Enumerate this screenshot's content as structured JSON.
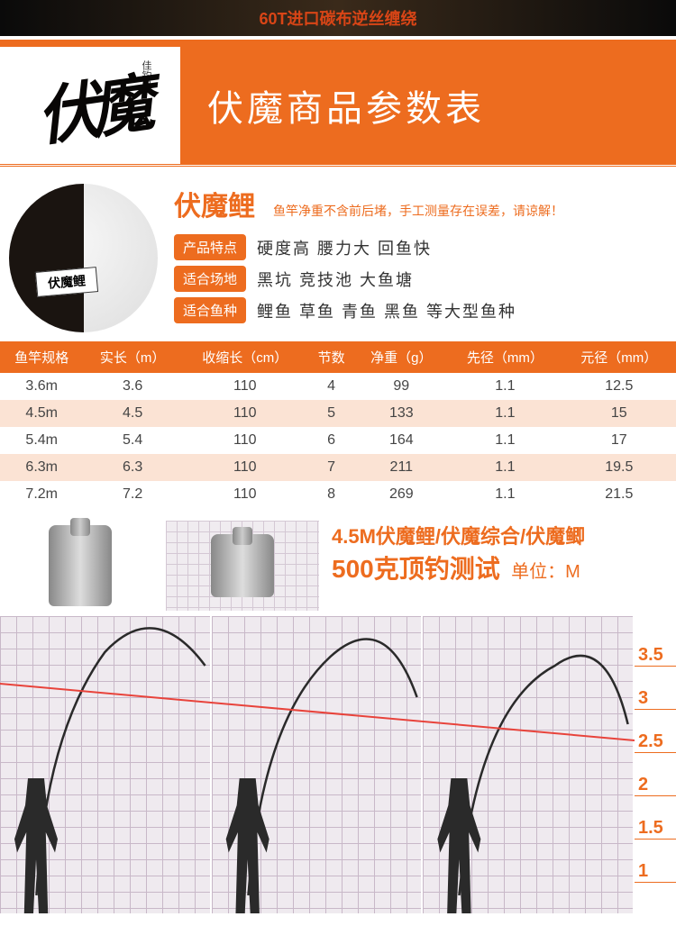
{
  "top_banner": "60T进口碳布逆丝缠绕",
  "header": {
    "logo_main": "伏魔",
    "logo_sub": "佳钓尼",
    "title": "伏魔商品参数表"
  },
  "product": {
    "rod_label": "伏魔鲤",
    "name": "伏魔鲤",
    "note": "鱼竿净重不含前后堵，手工测量存在误差，请谅解！",
    "attrs": [
      {
        "label": "产品特点",
        "value": "硬度高 腰力大 回鱼快"
      },
      {
        "label": "适合场地",
        "value": "黑坑 竞技池 大鱼塘"
      },
      {
        "label": "适合鱼种",
        "value": "鲤鱼 草鱼 青鱼 黑鱼 等大型鱼种"
      }
    ]
  },
  "spec_table": {
    "headers": [
      "鱼竿规格",
      "实长（m）",
      "收缩长（cm）",
      "节数",
      "净重（g）",
      "先径（mm）",
      "元径（mm）"
    ],
    "rows": [
      [
        "3.6m",
        "3.6",
        "110",
        "4",
        "99",
        "1.1",
        "12.5"
      ],
      [
        "4.5m",
        "4.5",
        "110",
        "5",
        "133",
        "1.1",
        "15"
      ],
      [
        "5.4m",
        "5.4",
        "110",
        "6",
        "164",
        "1.1",
        "17"
      ],
      [
        "6.3m",
        "6.3",
        "110",
        "7",
        "211",
        "1.1",
        "19.5"
      ],
      [
        "7.2m",
        "7.2",
        "110",
        "8",
        "269",
        "1.1",
        "21.5"
      ]
    ],
    "header_bg": "#ed6c1f",
    "alt_row_bg": "#fbe3d4"
  },
  "test": {
    "line1": "4.5M伏魔鲤/伏魔综合/伏魔鲫",
    "line2": "500克顶钓测试",
    "unit": "单位：M",
    "weight_label": "500g"
  },
  "curve": {
    "scale_values": [
      "3.5",
      "3",
      "2.5",
      "2",
      "1.5",
      "1"
    ],
    "curves": [
      "M 40 310 Q 50 130 115 40 Q 170 -20 225 55",
      "M 40 310 Q 55 115 130 45 Q 190 -10 225 90",
      "M 40 310 Q 60 100 145 55 Q 200 15 225 120"
    ],
    "red_line": "M 0 75 L 700 138",
    "grid_color": "#c8b8c8",
    "curve_color": "#2a2a2a",
    "red_color": "#e8433b"
  },
  "colors": {
    "primary": "#ed6c1f",
    "text": "#333"
  }
}
